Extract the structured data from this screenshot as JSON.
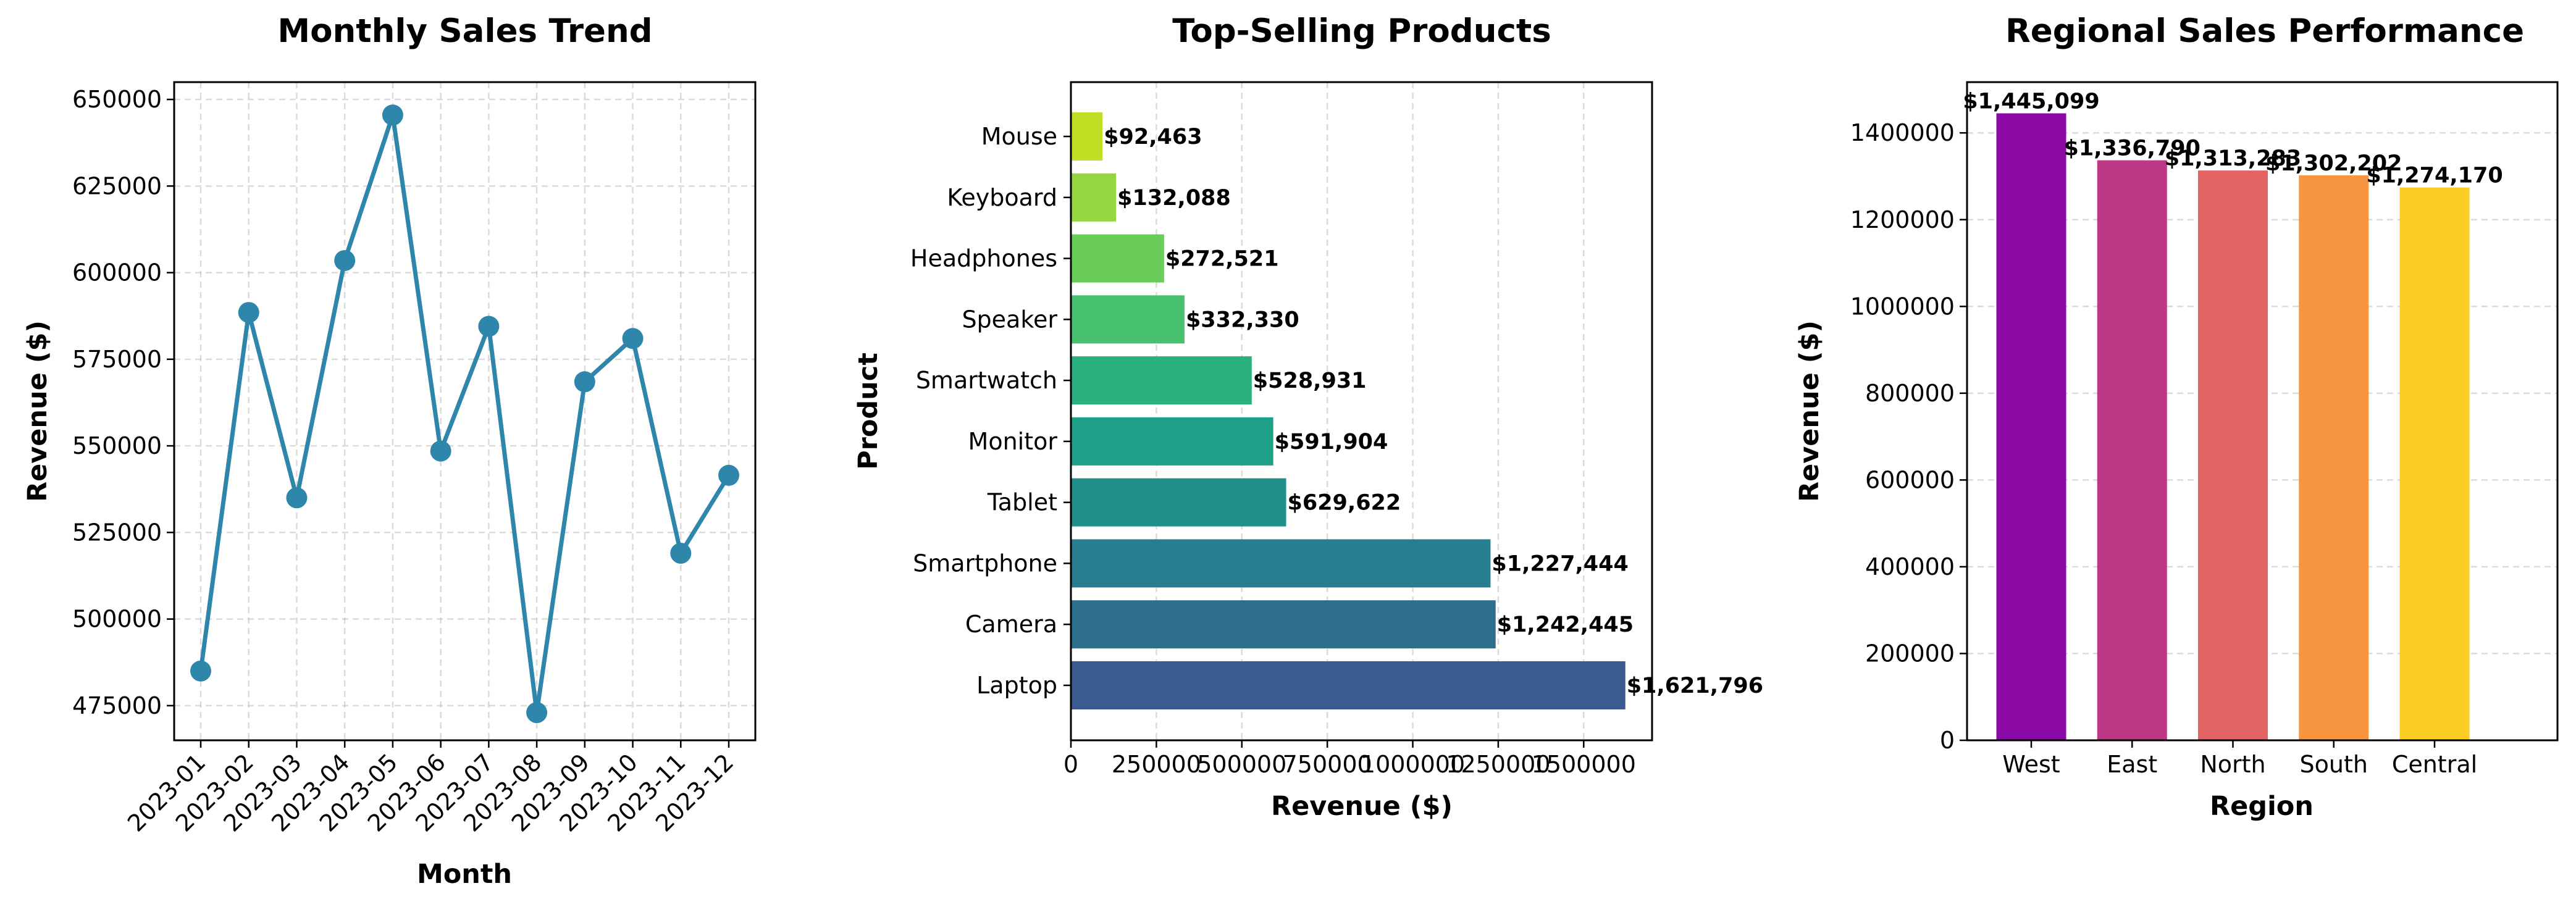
{
  "chart_data": [
    {
      "type": "line",
      "title": "Monthly Sales Trend",
      "xlabel": "Month",
      "ylabel": "Revenue ($)",
      "color": "#2e86ab",
      "x": [
        "2023-01",
        "2023-02",
        "2023-03",
        "2023-04",
        "2023-05",
        "2023-06",
        "2023-07",
        "2023-08",
        "2023-09",
        "2023-10",
        "2023-11",
        "2023-12"
      ],
      "values": [
        485000,
        588500,
        535000,
        603500,
        645500,
        548500,
        584500,
        473000,
        568500,
        581000,
        519000,
        541500
      ],
      "ylim": [
        465000,
        655000
      ],
      "yticks": [
        475000,
        500000,
        525000,
        550000,
        575000,
        600000,
        625000,
        650000
      ],
      "grid": true
    },
    {
      "type": "bar",
      "orientation": "horizontal",
      "title": "Top-Selling Products",
      "xlabel": "Revenue ($)",
      "ylabel": "Product",
      "categories": [
        "Laptop",
        "Camera",
        "Smartphone",
        "Tablet",
        "Monitor",
        "Smartwatch",
        "Speaker",
        "Headphones",
        "Keyboard",
        "Mouse"
      ],
      "values": [
        1621796,
        1242445,
        1227444,
        629622,
        591904,
        528931,
        332330,
        272521,
        132088,
        92463
      ],
      "data_labels": [
        "$1,621,796",
        "$1,242,445",
        "$1,227,444",
        "$629,622",
        "$591,904",
        "$528,931",
        "$332,330",
        "$272,521",
        "$132,088",
        "$92,463"
      ],
      "colors": [
        "#3b5a8f",
        "#2d6e8c",
        "#287d8e",
        "#21908d",
        "#1fa088",
        "#2bb07f",
        "#48c16e",
        "#6bcd59",
        "#94d741",
        "#c0df25"
      ],
      "xlim": [
        0,
        1700000
      ],
      "xticks": [
        0,
        250000,
        500000,
        750000,
        1000000,
        1250000,
        1500000
      ],
      "grid": true
    },
    {
      "type": "bar",
      "title": "Regional Sales Performance",
      "xlabel": "Region",
      "ylabel": "Revenue ($)",
      "categories": [
        "West",
        "East",
        "North",
        "South",
        "Central"
      ],
      "values": [
        1445099,
        1336790,
        1313283,
        1302202,
        1274170
      ],
      "data_labels": [
        "$1,445,099",
        "$1,336,790",
        "$1,313,283",
        "$1,302,202",
        "$1,274,170"
      ],
      "colors": [
        "#8b0aa5",
        "#bc3784",
        "#e16462",
        "#f89540",
        "#fccd25"
      ],
      "ylim": [
        0,
        1517000
      ],
      "yticks": [
        0,
        200000,
        400000,
        600000,
        800000,
        1000000,
        1200000,
        1400000
      ],
      "grid": true
    }
  ]
}
